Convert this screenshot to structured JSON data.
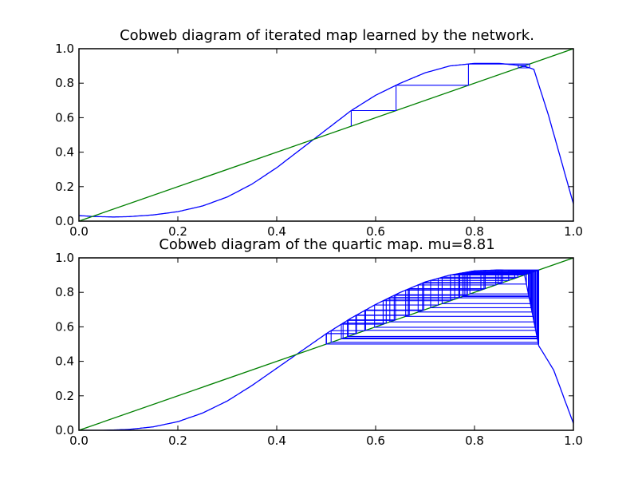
{
  "chart_data": [
    {
      "type": "line",
      "title": "Cobweb diagram of iterated map learned by the network.",
      "xlabel": "",
      "ylabel": "",
      "xlim": [
        0.0,
        1.0
      ],
      "ylim": [
        0.0,
        1.0
      ],
      "x_ticks": [
        "0.0",
        "0.2",
        "0.4",
        "0.6",
        "0.8",
        "1.0"
      ],
      "y_ticks": [
        "0.0",
        "0.2",
        "0.4",
        "0.6",
        "0.8",
        "1.0"
      ],
      "grid": false,
      "series": [
        {
          "kind": "map-curve",
          "color": "#0000ff",
          "points": [
            [
              0.0,
              0.032
            ],
            [
              0.03,
              0.027
            ],
            [
              0.07,
              0.024
            ],
            [
              0.1,
              0.026
            ],
            [
              0.15,
              0.036
            ],
            [
              0.2,
              0.055
            ],
            [
              0.25,
              0.088
            ],
            [
              0.3,
              0.14
            ],
            [
              0.35,
              0.215
            ],
            [
              0.4,
              0.31
            ],
            [
              0.45,
              0.42
            ],
            [
              0.5,
              0.53
            ],
            [
              0.55,
              0.64
            ],
            [
              0.6,
              0.73
            ],
            [
              0.65,
              0.8
            ],
            [
              0.7,
              0.86
            ],
            [
              0.75,
              0.9
            ],
            [
              0.8,
              0.915
            ],
            [
              0.85,
              0.915
            ],
            [
              0.9,
              0.9
            ],
            [
              0.92,
              0.88
            ],
            [
              0.95,
              0.61
            ],
            [
              1.0,
              0.1
            ]
          ]
        },
        {
          "kind": "identity-line",
          "color": "#008000",
          "points": [
            [
              0.0,
              0.0
            ],
            [
              1.0,
              1.0
            ]
          ]
        },
        {
          "kind": "cobweb",
          "color": "#0000ff",
          "x_range": [
            0.55,
            0.92
          ],
          "y_range": [
            0.55,
            0.92
          ]
        }
      ]
    },
    {
      "type": "line",
      "title": "Cobweb diagram of the quartic map.  mu=8.81",
      "xlabel": "",
      "ylabel": "",
      "xlim": [
        0.0,
        1.0
      ],
      "ylim": [
        0.0,
        1.0
      ],
      "x_ticks": [
        "0.0",
        "0.2",
        "0.4",
        "0.6",
        "0.8",
        "1.0"
      ],
      "y_ticks": [
        "0.0",
        "0.2",
        "0.4",
        "0.6",
        "0.8",
        "1.0"
      ],
      "grid": false,
      "series": [
        {
          "kind": "map-curve",
          "color": "#0000ff",
          "points": [
            [
              0.0,
              0.0
            ],
            [
              0.05,
              0.0
            ],
            [
              0.1,
              0.005
            ],
            [
              0.15,
              0.02
            ],
            [
              0.2,
              0.05
            ],
            [
              0.25,
              0.1
            ],
            [
              0.3,
              0.17
            ],
            [
              0.35,
              0.26
            ],
            [
              0.4,
              0.36
            ],
            [
              0.45,
              0.46
            ],
            [
              0.5,
              0.56
            ],
            [
              0.55,
              0.65
            ],
            [
              0.6,
              0.73
            ],
            [
              0.65,
              0.8
            ],
            [
              0.7,
              0.86
            ],
            [
              0.75,
              0.9
            ],
            [
              0.8,
              0.925
            ],
            [
              0.85,
              0.93
            ],
            [
              0.9,
              0.92
            ],
            [
              0.93,
              0.49
            ],
            [
              0.96,
              0.35
            ],
            [
              1.0,
              0.04
            ]
          ]
        },
        {
          "kind": "identity-line",
          "color": "#008000",
          "points": [
            [
              0.0,
              0.0
            ],
            [
              1.0,
              1.0
            ]
          ]
        },
        {
          "kind": "cobweb",
          "color": "#0000ff",
          "x_range": [
            0.5,
            0.93
          ],
          "y_range": [
            0.5,
            0.93
          ]
        }
      ]
    }
  ]
}
